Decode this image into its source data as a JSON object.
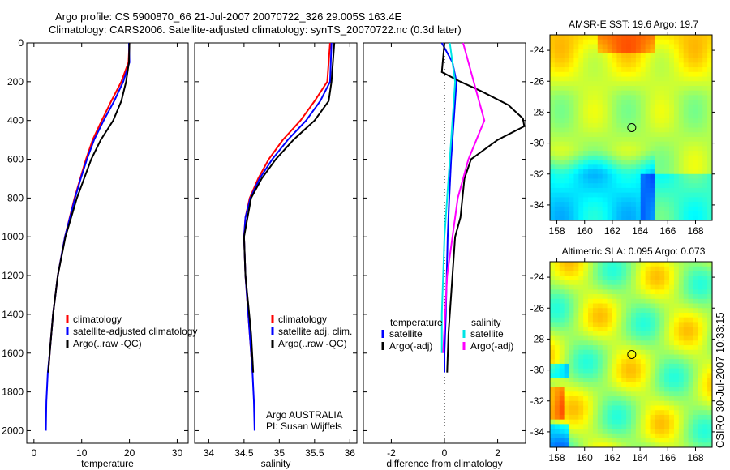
{
  "title": "Argo profile: CS 5900870_66 21-Jul-2007 20070722_326 29.005S 163.4E",
  "subtitle": "Climatology: CARS2006. Satellite-adjusted climatology: synTS_20070722.nc (0.3d later)",
  "side_label": "CSIRO 30-Jul-2007 10:33:15",
  "colors": {
    "climatology": "#ff0000",
    "satellite": "#0000ff",
    "argo": "#000000",
    "sal_satellite": "#00e5e5",
    "sal_argo": "#ff00ff"
  },
  "chart_data": [
    {
      "type": "line",
      "xlabel": "temperature",
      "ylabel": "",
      "xlim": [
        -1.5,
        32.3
      ],
      "ylim": [
        0,
        2065
      ],
      "xticks": [
        "0",
        "10",
        "20",
        "30"
      ],
      "xtick_values": [
        0,
        10,
        20,
        30
      ],
      "yticks": [
        "0",
        "200",
        "400",
        "600",
        "800",
        "1000",
        "1200",
        "1400",
        "1600",
        "1800",
        "2000"
      ],
      "ytick_values": [
        0,
        200,
        400,
        600,
        800,
        1000,
        1200,
        1400,
        1600,
        1800,
        2000
      ],
      "legend": [
        "climatology",
        "satellite-adjusted climatology",
        "Argo(..raw -QC)"
      ],
      "series": [
        {
          "name": "climatology",
          "color": "#ff0000",
          "x": [
            20,
            19.8,
            18.3,
            16.2,
            14.2,
            12.3,
            10.9,
            9.7,
            8.5,
            6.5,
            5,
            4,
            3.3,
            3
          ],
          "depth": [
            0,
            100,
            200,
            300,
            400,
            500,
            600,
            700,
            800,
            1000,
            1200,
            1400,
            1600,
            1700
          ]
        },
        {
          "name": "satellite-adjusted climatology",
          "color": "#0000ff",
          "x": [
            19.9,
            20,
            18.7,
            16.8,
            14.6,
            12.6,
            11.1,
            9.8,
            8.6,
            6.5,
            5,
            4,
            3.3,
            2.9,
            2.6,
            2.5
          ],
          "depth": [
            0,
            100,
            200,
            300,
            400,
            500,
            600,
            700,
            800,
            1000,
            1200,
            1400,
            1600,
            1700,
            1850,
            2000
          ]
        },
        {
          "name": "Argo(..raw -QC)",
          "color": "#000000",
          "x": [
            20,
            19.9,
            19.3,
            18.3,
            16.6,
            14,
            12,
            10.5,
            9,
            6.6,
            5,
            4,
            3.3,
            3
          ],
          "depth": [
            0,
            100,
            200,
            300,
            400,
            500,
            600,
            700,
            800,
            1000,
            1200,
            1400,
            1600,
            1700
          ]
        }
      ]
    },
    {
      "type": "line",
      "xlabel": "salinity",
      "xlim": [
        33.8,
        36.1
      ],
      "ylim": [
        0,
        2065
      ],
      "xticks": [
        "34",
        "34.5",
        "35",
        "35.5",
        "36"
      ],
      "xtick_values": [
        34,
        34.5,
        35,
        35.5,
        36
      ],
      "legend": [
        "climatology",
        "satellite adj. clim.",
        "Argo(..raw -QC)"
      ],
      "annotation": [
        "Argo AUSTRALIA",
        "PI: Susan Wijffels"
      ],
      "series": [
        {
          "name": "climatology",
          "color": "#ff0000",
          "x": [
            35.72,
            35.68,
            35.5,
            35.3,
            35.05,
            34.85,
            34.7,
            34.58,
            34.52,
            34.5,
            34.52,
            34.58,
            34.62
          ],
          "depth": [
            0,
            200,
            300,
            400,
            500,
            600,
            700,
            800,
            900,
            1000,
            1200,
            1500,
            1700
          ]
        },
        {
          "name": "satellite adj. clim.",
          "color": "#0000ff",
          "x": [
            35.74,
            35.72,
            35.58,
            35.38,
            35.12,
            34.9,
            34.72,
            34.59,
            34.52,
            34.5,
            34.52,
            34.58,
            34.62,
            34.64,
            34.65
          ],
          "depth": [
            0,
            200,
            300,
            400,
            500,
            600,
            700,
            800,
            900,
            1000,
            1200,
            1500,
            1700,
            1850,
            2000
          ]
        },
        {
          "name": "Argo(..raw -QC)",
          "color": "#000000",
          "x": [
            35.78,
            35.76,
            35.74,
            35.7,
            35.5,
            35.2,
            34.95,
            34.75,
            34.6,
            34.5,
            34.52,
            34.6,
            34.63
          ],
          "depth": [
            0,
            100,
            200,
            300,
            400,
            500,
            600,
            700,
            800,
            1000,
            1200,
            1500,
            1700
          ]
        }
      ]
    },
    {
      "type": "line",
      "xlabel": "difference from climatology",
      "xlim": [
        -3.05,
        3.05
      ],
      "ylim": [
        0,
        2065
      ],
      "xticks": [
        "-2",
        "0",
        "2"
      ],
      "xtick_values": [
        -2,
        0,
        2
      ],
      "legend": {
        "temperature_title": "temperature",
        "salinity_title": "salinity",
        "items": [
          "satellite",
          "Argo(-adj)",
          "satellite",
          "Argo(-adj)"
        ]
      },
      "series": [
        {
          "name": "temperature satellite",
          "color": "#0000ff",
          "x": [
            -0.1,
            0.3,
            0.45,
            0.35,
            0.25,
            0.18,
            0.12,
            0.05,
            0,
            0
          ],
          "depth": [
            0,
            100,
            200,
            400,
            600,
            800,
            1000,
            1400,
            1600,
            1700
          ]
        },
        {
          "name": "temperature Argo(-adj)",
          "color": "#000000",
          "x": [
            0,
            -0.1,
            0.6,
            1.4,
            2.4,
            2.95,
            3.0,
            2.0,
            1.0,
            0.75,
            0.6,
            0.4,
            0.3,
            0.15,
            0.1
          ],
          "depth": [
            0,
            150,
            200,
            250,
            320,
            390,
            430,
            500,
            600,
            700,
            900,
            1000,
            1200,
            1500,
            1700
          ]
        },
        {
          "name": "salinity satellite",
          "color": "#00e5e5",
          "x": [
            0.2,
            0.3,
            0.4,
            0.3,
            0.2,
            0.1,
            0,
            -0.1,
            -0.1
          ],
          "depth": [
            0,
            100,
            200,
            400,
            600,
            800,
            1000,
            1400,
            1600
          ]
        },
        {
          "name": "salinity Argo(-adj)",
          "color": "#ff00ff",
          "x": [
            0.7,
            0.9,
            1.1,
            1.3,
            1.5,
            1.2,
            0.9,
            0.5,
            0.3,
            0.1,
            -0.05
          ],
          "depth": [
            0,
            100,
            200,
            300,
            400,
            500,
            600,
            800,
            1000,
            1200,
            1600
          ]
        }
      ]
    },
    {
      "type": "heatmap",
      "title": "AMSR-E SST: 19.6 Argo: 19.7",
      "xlim": [
        157.5,
        169.2
      ],
      "ylim": [
        -35,
        -23
      ],
      "xticks": [
        "158",
        "160",
        "162",
        "164",
        "166",
        "168"
      ],
      "xtick_values": [
        158,
        160,
        162,
        164,
        166,
        168
      ],
      "yticks": [
        "-24",
        "-26",
        "-28",
        "-30",
        "-32",
        "-34"
      ],
      "ytick_values": [
        -24,
        -26,
        -28,
        -30,
        -32,
        -34
      ],
      "marker": {
        "lon": 163.4,
        "lat": -29.0
      }
    },
    {
      "type": "heatmap",
      "title": "Altimetric SLA: 0.095 Argo: 0.073",
      "xlim": [
        157.5,
        169.2
      ],
      "ylim": [
        -35,
        -23
      ],
      "xticks": [
        "158",
        "160",
        "162",
        "164",
        "166",
        "168"
      ],
      "xtick_values": [
        158,
        160,
        162,
        164,
        166,
        168
      ],
      "yticks": [
        "-24",
        "-26",
        "-28",
        "-30",
        "-32",
        "-34"
      ],
      "ytick_values": [
        -24,
        -26,
        -28,
        -30,
        -32,
        -34
      ],
      "marker": {
        "lon": 163.4,
        "lat": -29.0
      }
    }
  ]
}
